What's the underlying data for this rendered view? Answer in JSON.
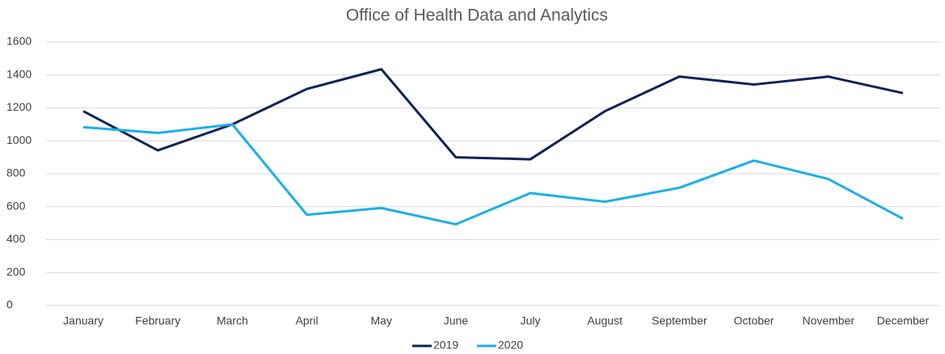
{
  "chart_data": {
    "type": "line",
    "title": "Office of Health Data and Analytics",
    "categories": [
      "January",
      "February",
      "March",
      "April",
      "May",
      "June",
      "July",
      "August",
      "September",
      "October",
      "November",
      "December"
    ],
    "series": [
      {
        "name": "2019",
        "color": "#0e2355",
        "values": [
          1180,
          942,
          1100,
          1315,
          1435,
          900,
          888,
          1180,
          1390,
          1342,
          1390,
          1290
        ]
      },
      {
        "name": "2020",
        "color": "#1ab0e8",
        "values": [
          1083,
          1048,
          1100,
          551,
          592,
          493,
          683,
          630,
          715,
          880,
          768,
          527
        ]
      }
    ],
    "ylim": [
      0,
      1600
    ],
    "yticks": [
      0,
      200,
      400,
      600,
      800,
      1000,
      1200,
      1400,
      1600
    ],
    "grid": true,
    "legend": "bottom"
  }
}
